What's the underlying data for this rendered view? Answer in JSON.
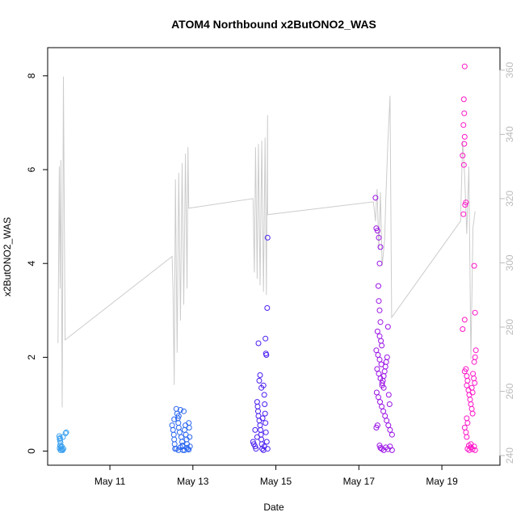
{
  "chart_data": {
    "type": "scatter",
    "title": "ATOM4 Northbound x2ButONO2_WAS",
    "xlabel": "Date",
    "ylabel": "x2ButONO2_WAS",
    "x_ticks": [
      "May 11",
      "May 13",
      "May 15",
      "May 17",
      "May 19"
    ],
    "x_tick_days": [
      11,
      13,
      15,
      17,
      19
    ],
    "xlim_days": [
      9.5,
      20.4
    ],
    "ylim": [
      -0.3,
      8.6
    ],
    "y_ticks": [
      0,
      2,
      4,
      6,
      8
    ],
    "y2lim": [
      237,
      367
    ],
    "y2_ticks": [
      240,
      260,
      280,
      300,
      320,
      340,
      360
    ],
    "grid": false,
    "legend": "none",
    "colors": {
      "flight1": "#3aa0f0",
      "flight2": "#2a66f0",
      "flight3": "#4a1df0",
      "flight4": "#9b12e6",
      "flight5": "#ff14c8",
      "background_line": "#cccccc",
      "right_axis": "#bbbbbb"
    },
    "series": [
      {
        "color_key": "flight1",
        "points": [
          [
            9.78,
            0.32
          ],
          [
            9.79,
            0.26
          ],
          [
            9.8,
            0.22
          ],
          [
            9.81,
            0.18
          ],
          [
            9.8,
            0.12
          ],
          [
            9.82,
            0.09
          ],
          [
            9.79,
            0.06
          ],
          [
            9.83,
            0.04
          ],
          [
            9.85,
            0.03
          ],
          [
            9.86,
            0.02
          ],
          [
            9.88,
            0.05
          ],
          [
            9.81,
            0.02
          ],
          [
            9.84,
            0.1
          ],
          [
            9.87,
            0.3
          ],
          [
            9.8,
            0.28
          ],
          [
            9.93,
            0.38
          ],
          [
            9.95,
            0.4
          ]
        ]
      },
      {
        "color_key": "flight2",
        "points": [
          [
            12.5,
            0.55
          ],
          [
            12.52,
            0.45
          ],
          [
            12.54,
            0.35
          ],
          [
            12.55,
            0.25
          ],
          [
            12.56,
            0.15
          ],
          [
            12.57,
            0.05
          ],
          [
            12.6,
            0.9
          ],
          [
            12.62,
            0.8
          ],
          [
            12.64,
            0.7
          ],
          [
            12.65,
            0.6
          ],
          [
            12.66,
            0.5
          ],
          [
            12.68,
            0.4
          ],
          [
            12.7,
            0.88
          ],
          [
            12.72,
            0.3
          ],
          [
            12.74,
            0.2
          ],
          [
            12.75,
            0.1
          ],
          [
            12.76,
            0.02
          ],
          [
            12.78,
            0.85
          ],
          [
            12.8,
            0.45
          ],
          [
            12.82,
            0.55
          ],
          [
            12.83,
            0.35
          ],
          [
            12.85,
            0.25
          ],
          [
            12.86,
            0.15
          ],
          [
            12.88,
            0.05
          ],
          [
            12.9,
            0.6
          ],
          [
            12.91,
            0.5
          ],
          [
            12.92,
            0.3
          ],
          [
            12.93,
            0.1
          ],
          [
            12.6,
            0.05
          ],
          [
            12.65,
            0.02
          ],
          [
            12.7,
            0.08
          ],
          [
            12.75,
            0.12
          ],
          [
            12.8,
            0.02
          ],
          [
            12.85,
            0.07
          ],
          [
            12.9,
            0.03
          ],
          [
            12.55,
            0.68
          ],
          [
            12.66,
            0.75
          ]
        ]
      },
      {
        "color_key": "flight3",
        "points": [
          [
            14.45,
            0.2
          ],
          [
            14.47,
            0.15
          ],
          [
            14.5,
            0.1
          ],
          [
            14.52,
            0.05
          ],
          [
            14.55,
            1.05
          ],
          [
            14.56,
            0.95
          ],
          [
            14.57,
            0.85
          ],
          [
            14.58,
            0.75
          ],
          [
            14.6,
            0.65
          ],
          [
            14.62,
            0.55
          ],
          [
            14.63,
            0.45
          ],
          [
            14.64,
            0.35
          ],
          [
            14.65,
            0.25
          ],
          [
            14.66,
            0.15
          ],
          [
            14.67,
            0.05
          ],
          [
            14.6,
            1.5
          ],
          [
            14.62,
            1.62
          ],
          [
            14.58,
            2.3
          ],
          [
            14.65,
            1.35
          ],
          [
            14.7,
            1.4
          ],
          [
            14.72,
            1.2
          ],
          [
            14.73,
            1.0
          ],
          [
            14.74,
            0.8
          ],
          [
            14.75,
            0.6
          ],
          [
            14.76,
            0.4
          ],
          [
            14.78,
            0.2
          ],
          [
            14.8,
            0.05
          ],
          [
            14.75,
            2.4
          ],
          [
            14.76,
            2.08
          ],
          [
            14.77,
            2.05
          ],
          [
            14.8,
            4.55
          ],
          [
            14.79,
            3.05
          ],
          [
            14.5,
            0.45
          ],
          [
            14.55,
            0.3
          ],
          [
            14.68,
            0.7
          ],
          [
            14.7,
            0.02
          ],
          [
            14.72,
            0.1
          ]
        ]
      },
      {
        "color_key": "flight4",
        "points": [
          [
            17.4,
            5.4
          ],
          [
            17.42,
            4.75
          ],
          [
            17.45,
            4.7
          ],
          [
            17.48,
            4.55
          ],
          [
            17.52,
            4.35
          ],
          [
            17.5,
            4.0
          ],
          [
            17.47,
            3.52
          ],
          [
            17.48,
            3.2
          ],
          [
            17.5,
            3.0
          ],
          [
            17.52,
            2.75
          ],
          [
            17.45,
            2.55
          ],
          [
            17.5,
            2.45
          ],
          [
            17.53,
            2.35
          ],
          [
            17.55,
            2.25
          ],
          [
            17.42,
            2.15
          ],
          [
            17.46,
            2.05
          ],
          [
            17.5,
            1.95
          ],
          [
            17.54,
            1.85
          ],
          [
            17.44,
            1.75
          ],
          [
            17.48,
            1.65
          ],
          [
            17.52,
            1.55
          ],
          [
            17.56,
            1.45
          ],
          [
            17.6,
            1.35
          ],
          [
            17.43,
            1.25
          ],
          [
            17.47,
            1.15
          ],
          [
            17.51,
            1.05
          ],
          [
            17.55,
            0.95
          ],
          [
            17.59,
            0.85
          ],
          [
            17.63,
            0.75
          ],
          [
            17.67,
            0.65
          ],
          [
            17.71,
            0.55
          ],
          [
            17.75,
            0.45
          ],
          [
            17.8,
            0.35
          ],
          [
            17.42,
            0.5
          ],
          [
            17.45,
            0.55
          ],
          [
            17.7,
            2.65
          ],
          [
            17.68,
            2.0
          ],
          [
            17.66,
            1.9
          ],
          [
            17.64,
            1.8
          ],
          [
            17.62,
            1.7
          ],
          [
            17.6,
            1.6
          ],
          [
            17.58,
            1.5
          ],
          [
            17.56,
            1.4
          ],
          [
            17.72,
            1.2
          ],
          [
            17.74,
            1.0
          ],
          [
            17.55,
            0.05
          ],
          [
            17.6,
            0.02
          ],
          [
            17.65,
            0.08
          ],
          [
            17.7,
            0.04
          ],
          [
            17.75,
            0.1
          ],
          [
            17.8,
            0.02
          ],
          [
            17.5,
            0.12
          ],
          [
            17.52,
            0.07
          ]
        ]
      },
      {
        "color_key": "flight5",
        "points": [
          [
            19.55,
            8.2
          ],
          [
            19.53,
            7.5
          ],
          [
            19.54,
            7.2
          ],
          [
            19.52,
            6.95
          ],
          [
            19.55,
            6.7
          ],
          [
            19.54,
            6.55
          ],
          [
            19.5,
            6.3
          ],
          [
            19.53,
            6.1
          ],
          [
            19.58,
            5.3
          ],
          [
            19.56,
            5.25
          ],
          [
            19.52,
            5.05
          ],
          [
            19.55,
            2.8
          ],
          [
            19.5,
            2.6
          ],
          [
            19.78,
            3.95
          ],
          [
            19.8,
            2.95
          ],
          [
            19.82,
            2.15
          ],
          [
            19.8,
            2.0
          ],
          [
            19.78,
            1.9
          ],
          [
            19.58,
            1.75
          ],
          [
            19.55,
            1.7
          ],
          [
            19.6,
            1.6
          ],
          [
            19.62,
            1.5
          ],
          [
            19.6,
            1.4
          ],
          [
            19.64,
            1.3
          ],
          [
            19.66,
            1.2
          ],
          [
            19.68,
            1.1
          ],
          [
            19.7,
            1.0
          ],
          [
            19.72,
            0.9
          ],
          [
            19.74,
            0.8
          ],
          [
            19.6,
            0.7
          ],
          [
            19.62,
            0.6
          ],
          [
            19.55,
            0.5
          ],
          [
            19.58,
            0.4
          ],
          [
            19.6,
            0.3
          ],
          [
            19.75,
            1.65
          ],
          [
            19.77,
            1.55
          ],
          [
            19.79,
            1.45
          ],
          [
            19.72,
            1.35
          ],
          [
            19.74,
            1.25
          ],
          [
            19.62,
            0.05
          ],
          [
            19.66,
            0.02
          ],
          [
            19.7,
            0.08
          ],
          [
            19.74,
            0.04
          ],
          [
            19.78,
            0.1
          ],
          [
            19.8,
            0.02
          ],
          [
            19.65,
            0.12
          ],
          [
            19.7,
            0.15
          ]
        ]
      }
    ],
    "background_line": {
      "axis": "y2",
      "points": [
        [
          9.75,
          275
        ],
        [
          9.78,
          330
        ],
        [
          9.8,
          292
        ],
        [
          9.82,
          332
        ],
        [
          9.85,
          255
        ],
        [
          9.88,
          358
        ],
        [
          9.92,
          276
        ],
        [
          12.5,
          302
        ],
        [
          12.52,
          292
        ],
        [
          12.55,
          262
        ],
        [
          12.58,
          326
        ],
        [
          12.62,
          272
        ],
        [
          12.66,
          328
        ],
        [
          12.7,
          282
        ],
        [
          12.74,
          331
        ],
        [
          12.78,
          287
        ],
        [
          12.82,
          334
        ],
        [
          12.86,
          292
        ],
        [
          12.88,
          336
        ],
        [
          12.9,
          317
        ],
        [
          14.45,
          320
        ],
        [
          14.48,
          297
        ],
        [
          14.51,
          336
        ],
        [
          14.55,
          295
        ],
        [
          14.58,
          337
        ],
        [
          14.62,
          293
        ],
        [
          14.66,
          338
        ],
        [
          14.7,
          291
        ],
        [
          14.74,
          339
        ],
        [
          14.77,
          290
        ],
        [
          14.8,
          346
        ],
        [
          14.8,
          315
        ],
        [
          17.35,
          319
        ],
        [
          17.4,
          313
        ],
        [
          17.44,
          323
        ],
        [
          17.48,
          304
        ],
        [
          17.52,
          322
        ],
        [
          17.56,
          299
        ],
        [
          17.62,
          307
        ],
        [
          17.65,
          320
        ],
        [
          17.7,
          338
        ],
        [
          17.75,
          352
        ],
        [
          17.79,
          283
        ],
        [
          19.45,
          313
        ],
        [
          19.5,
          338
        ],
        [
          19.55,
          327
        ],
        [
          19.6,
          309
        ],
        [
          19.65,
          330
        ],
        [
          19.7,
          270
        ],
        [
          19.75,
          311
        ],
        [
          19.8,
          316
        ]
      ]
    }
  }
}
